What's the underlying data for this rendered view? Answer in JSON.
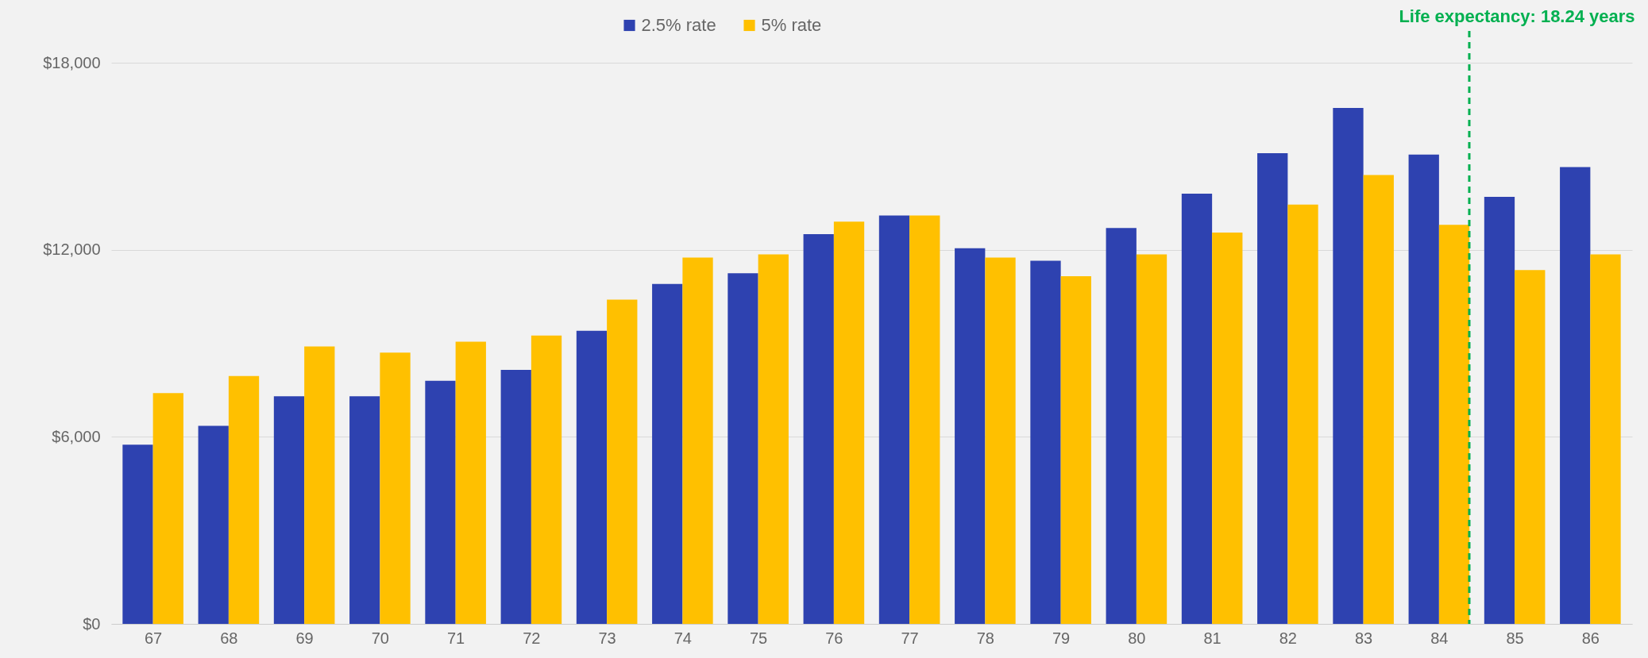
{
  "chart_data": {
    "type": "bar",
    "x": [
      67,
      68,
      69,
      70,
      71,
      72,
      73,
      74,
      75,
      76,
      77,
      78,
      79,
      80,
      81,
      82,
      83,
      84,
      85,
      86
    ],
    "series": [
      {
        "name": "2.5% rate",
        "color": "#2e42b0",
        "values": [
          5750,
          6350,
          7300,
          7300,
          7800,
          8150,
          9400,
          10900,
          11250,
          12500,
          13100,
          12050,
          11650,
          12700,
          13800,
          15100,
          16550,
          15050,
          13700,
          14650
        ]
      },
      {
        "name": "5% rate",
        "color": "#ffc000",
        "values": [
          7400,
          7950,
          8900,
          8700,
          9050,
          9250,
          10400,
          11750,
          11850,
          12900,
          13100,
          11750,
          11150,
          11850,
          12550,
          13450,
          14400,
          12800,
          11350,
          11850
        ]
      }
    ],
    "xlim": [
      66.5,
      86.5
    ],
    "xticks": [
      67,
      68,
      69,
      70,
      71,
      72,
      73,
      74,
      75,
      76,
      77,
      78,
      79,
      80,
      81,
      82,
      83,
      84,
      85,
      86
    ],
    "ylim": [
      0,
      18000
    ],
    "yticks": [
      {
        "value": 0,
        "label": "$0"
      },
      {
        "value": 6000,
        "label": "$6,000"
      },
      {
        "value": 12000,
        "label": "$12,000"
      },
      {
        "value": 18000,
        "label": "$18,000"
      }
    ],
    "grid": "y",
    "legend": "top",
    "ref_lines": [
      {
        "axis": "x",
        "value": 84.4,
        "color": "#00b050",
        "line_style": "dashed"
      }
    ],
    "annotations": [
      "Life expectancy: 18.24 years"
    ]
  }
}
